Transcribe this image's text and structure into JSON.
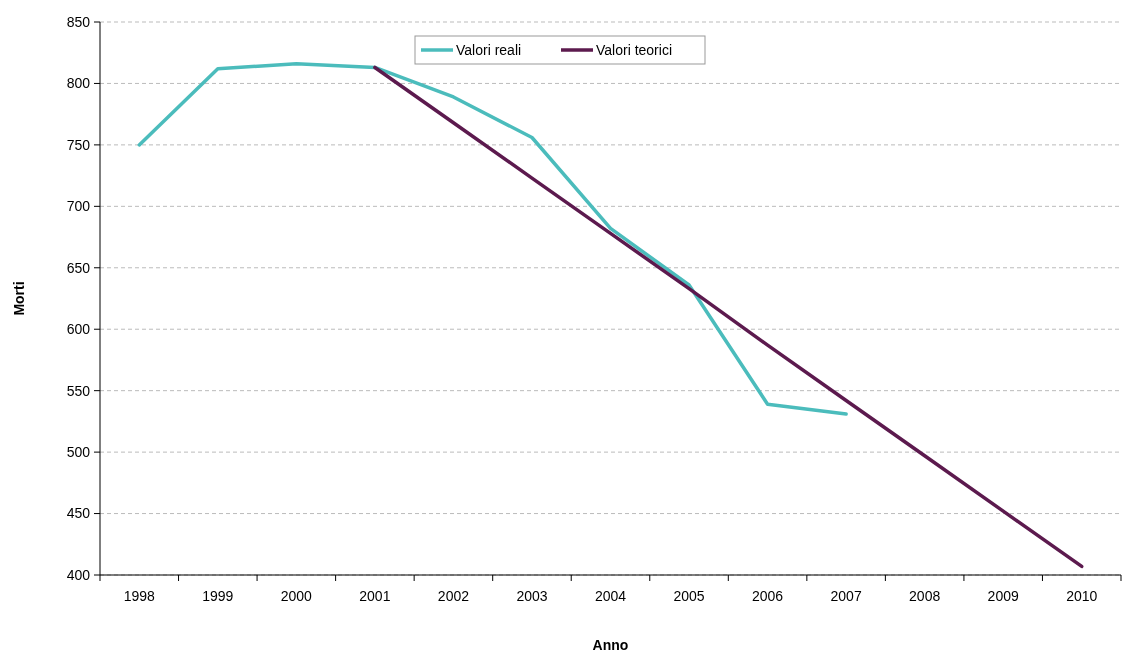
{
  "chart_data": {
    "type": "line",
    "xlabel": "Anno",
    "ylabel": "Morti",
    "categories": [
      "1998",
      "1999",
      "2000",
      "2001",
      "2002",
      "2003",
      "2004",
      "2005",
      "2006",
      "2007",
      "2008",
      "2009",
      "2010"
    ],
    "series": [
      {
        "name": "Valori reali",
        "color": "#4bbcbc",
        "values": [
          750,
          812,
          816,
          813,
          789,
          756,
          682,
          636,
          539,
          531,
          null,
          null,
          null
        ]
      },
      {
        "name": "Valori teorici",
        "color": "#5c1a4e",
        "values": [
          null,
          null,
          null,
          813,
          768,
          723,
          678,
          633,
          587,
          542,
          497,
          452,
          407
        ]
      }
    ],
    "ylim": [
      400,
      850
    ],
    "yticks": [
      400,
      450,
      500,
      550,
      600,
      650,
      700,
      750,
      800,
      850
    ],
    "grid": "y",
    "legend": "top",
    "marker": "none",
    "line_style": "solid"
  }
}
